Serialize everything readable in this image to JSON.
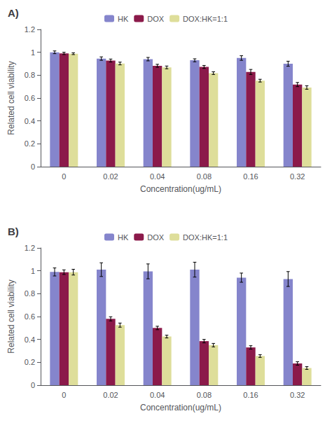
{
  "chart_data": [
    {
      "type": "bar",
      "title": "A)",
      "xlabel": "Concentration(ug/mL)",
      "ylabel": "Related cell viability",
      "categories": [
        "0",
        "0.02",
        "0.04",
        "0.08",
        "0.16",
        "0.32"
      ],
      "series": [
        {
          "name": "HK",
          "color": "#8585CC",
          "values": [
            1.0,
            0.945,
            0.94,
            0.93,
            0.95,
            0.9
          ],
          "errors": [
            0.012,
            0.015,
            0.015,
            0.013,
            0.02,
            0.022
          ]
        },
        {
          "name": "DOX",
          "color": "#8B1A4A",
          "values": [
            0.99,
            0.928,
            0.882,
            0.872,
            0.828,
            0.718
          ],
          "errors": [
            0.01,
            0.013,
            0.013,
            0.013,
            0.022,
            0.018
          ]
        },
        {
          "name": "DOX:HK=1:1",
          "color": "#DEDE9A",
          "values": [
            0.988,
            0.902,
            0.868,
            0.818,
            0.752,
            0.692
          ],
          "errors": [
            0.008,
            0.012,
            0.012,
            0.012,
            0.012,
            0.015
          ]
        }
      ],
      "ylim": [
        0,
        1.2
      ],
      "yticks": [
        0,
        0.2,
        0.4,
        0.6,
        0.8,
        1,
        1.2
      ],
      "grid": false,
      "legend": "top"
    },
    {
      "type": "bar",
      "title": "B)",
      "xlabel": "Concentration(ug/mL)",
      "ylabel": "Related cell viability",
      "categories": [
        "0",
        "0.02",
        "0.04",
        "0.08",
        "0.16",
        "0.32"
      ],
      "series": [
        {
          "name": "HK",
          "color": "#8585CC",
          "values": [
            0.99,
            1.01,
            0.995,
            1.01,
            0.94,
            0.928
          ],
          "errors": [
            0.035,
            0.06,
            0.065,
            0.065,
            0.04,
            0.065
          ]
        },
        {
          "name": "DOX",
          "color": "#8B1A4A",
          "values": [
            0.988,
            0.58,
            0.5,
            0.385,
            0.33,
            0.19
          ],
          "errors": [
            0.02,
            0.018,
            0.015,
            0.015,
            0.015,
            0.015
          ]
        },
        {
          "name": "DOX:HK=1:1",
          "color": "#DEDE9A",
          "values": [
            0.988,
            0.525,
            0.425,
            0.35,
            0.255,
            0.15
          ],
          "errors": [
            0.025,
            0.018,
            0.012,
            0.015,
            0.012,
            0.012
          ]
        }
      ],
      "ylim": [
        0,
        1.2
      ],
      "yticks": [
        0,
        0.2,
        0.4,
        0.6,
        0.8,
        1,
        1.2
      ],
      "grid": false,
      "legend": "top"
    }
  ]
}
